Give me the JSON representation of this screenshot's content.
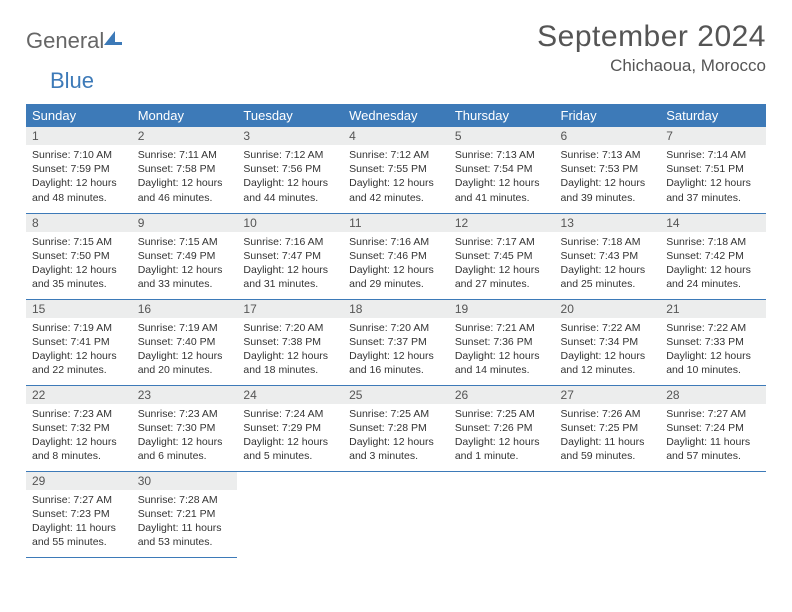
{
  "logo": {
    "part1": "General",
    "part2": "Blue"
  },
  "header": {
    "monthTitle": "September 2024",
    "location": "Chichaoua, Morocco"
  },
  "colors": {
    "brand": "#3d7ab8",
    "headerBg": "#3d7ab8",
    "dayNumBg": "#eceded"
  },
  "weekdays": [
    "Sunday",
    "Monday",
    "Tuesday",
    "Wednesday",
    "Thursday",
    "Friday",
    "Saturday"
  ],
  "days": [
    {
      "n": "1",
      "sunrise": "7:10 AM",
      "sunset": "7:59 PM",
      "daylight": "12 hours and 48 minutes."
    },
    {
      "n": "2",
      "sunrise": "7:11 AM",
      "sunset": "7:58 PM",
      "daylight": "12 hours and 46 minutes."
    },
    {
      "n": "3",
      "sunrise": "7:12 AM",
      "sunset": "7:56 PM",
      "daylight": "12 hours and 44 minutes."
    },
    {
      "n": "4",
      "sunrise": "7:12 AM",
      "sunset": "7:55 PM",
      "daylight": "12 hours and 42 minutes."
    },
    {
      "n": "5",
      "sunrise": "7:13 AM",
      "sunset": "7:54 PM",
      "daylight": "12 hours and 41 minutes."
    },
    {
      "n": "6",
      "sunrise": "7:13 AM",
      "sunset": "7:53 PM",
      "daylight": "12 hours and 39 minutes."
    },
    {
      "n": "7",
      "sunrise": "7:14 AM",
      "sunset": "7:51 PM",
      "daylight": "12 hours and 37 minutes."
    },
    {
      "n": "8",
      "sunrise": "7:15 AM",
      "sunset": "7:50 PM",
      "daylight": "12 hours and 35 minutes."
    },
    {
      "n": "9",
      "sunrise": "7:15 AM",
      "sunset": "7:49 PM",
      "daylight": "12 hours and 33 minutes."
    },
    {
      "n": "10",
      "sunrise": "7:16 AM",
      "sunset": "7:47 PM",
      "daylight": "12 hours and 31 minutes."
    },
    {
      "n": "11",
      "sunrise": "7:16 AM",
      "sunset": "7:46 PM",
      "daylight": "12 hours and 29 minutes."
    },
    {
      "n": "12",
      "sunrise": "7:17 AM",
      "sunset": "7:45 PM",
      "daylight": "12 hours and 27 minutes."
    },
    {
      "n": "13",
      "sunrise": "7:18 AM",
      "sunset": "7:43 PM",
      "daylight": "12 hours and 25 minutes."
    },
    {
      "n": "14",
      "sunrise": "7:18 AM",
      "sunset": "7:42 PM",
      "daylight": "12 hours and 24 minutes."
    },
    {
      "n": "15",
      "sunrise": "7:19 AM",
      "sunset": "7:41 PM",
      "daylight": "12 hours and 22 minutes."
    },
    {
      "n": "16",
      "sunrise": "7:19 AM",
      "sunset": "7:40 PM",
      "daylight": "12 hours and 20 minutes."
    },
    {
      "n": "17",
      "sunrise": "7:20 AM",
      "sunset": "7:38 PM",
      "daylight": "12 hours and 18 minutes."
    },
    {
      "n": "18",
      "sunrise": "7:20 AM",
      "sunset": "7:37 PM",
      "daylight": "12 hours and 16 minutes."
    },
    {
      "n": "19",
      "sunrise": "7:21 AM",
      "sunset": "7:36 PM",
      "daylight": "12 hours and 14 minutes."
    },
    {
      "n": "20",
      "sunrise": "7:22 AM",
      "sunset": "7:34 PM",
      "daylight": "12 hours and 12 minutes."
    },
    {
      "n": "21",
      "sunrise": "7:22 AM",
      "sunset": "7:33 PM",
      "daylight": "12 hours and 10 minutes."
    },
    {
      "n": "22",
      "sunrise": "7:23 AM",
      "sunset": "7:32 PM",
      "daylight": "12 hours and 8 minutes."
    },
    {
      "n": "23",
      "sunrise": "7:23 AM",
      "sunset": "7:30 PM",
      "daylight": "12 hours and 6 minutes."
    },
    {
      "n": "24",
      "sunrise": "7:24 AM",
      "sunset": "7:29 PM",
      "daylight": "12 hours and 5 minutes."
    },
    {
      "n": "25",
      "sunrise": "7:25 AM",
      "sunset": "7:28 PM",
      "daylight": "12 hours and 3 minutes."
    },
    {
      "n": "26",
      "sunrise": "7:25 AM",
      "sunset": "7:26 PM",
      "daylight": "12 hours and 1 minute."
    },
    {
      "n": "27",
      "sunrise": "7:26 AM",
      "sunset": "7:25 PM",
      "daylight": "11 hours and 59 minutes."
    },
    {
      "n": "28",
      "sunrise": "7:27 AM",
      "sunset": "7:24 PM",
      "daylight": "11 hours and 57 minutes."
    },
    {
      "n": "29",
      "sunrise": "7:27 AM",
      "sunset": "7:23 PM",
      "daylight": "11 hours and 55 minutes."
    },
    {
      "n": "30",
      "sunrise": "7:28 AM",
      "sunset": "7:21 PM",
      "daylight": "11 hours and 53 minutes."
    }
  ],
  "labels": {
    "sunrise": "Sunrise: ",
    "sunset": "Sunset: ",
    "daylight": "Daylight: "
  },
  "layout": {
    "startWeekday": 0,
    "totalDays": 30
  }
}
